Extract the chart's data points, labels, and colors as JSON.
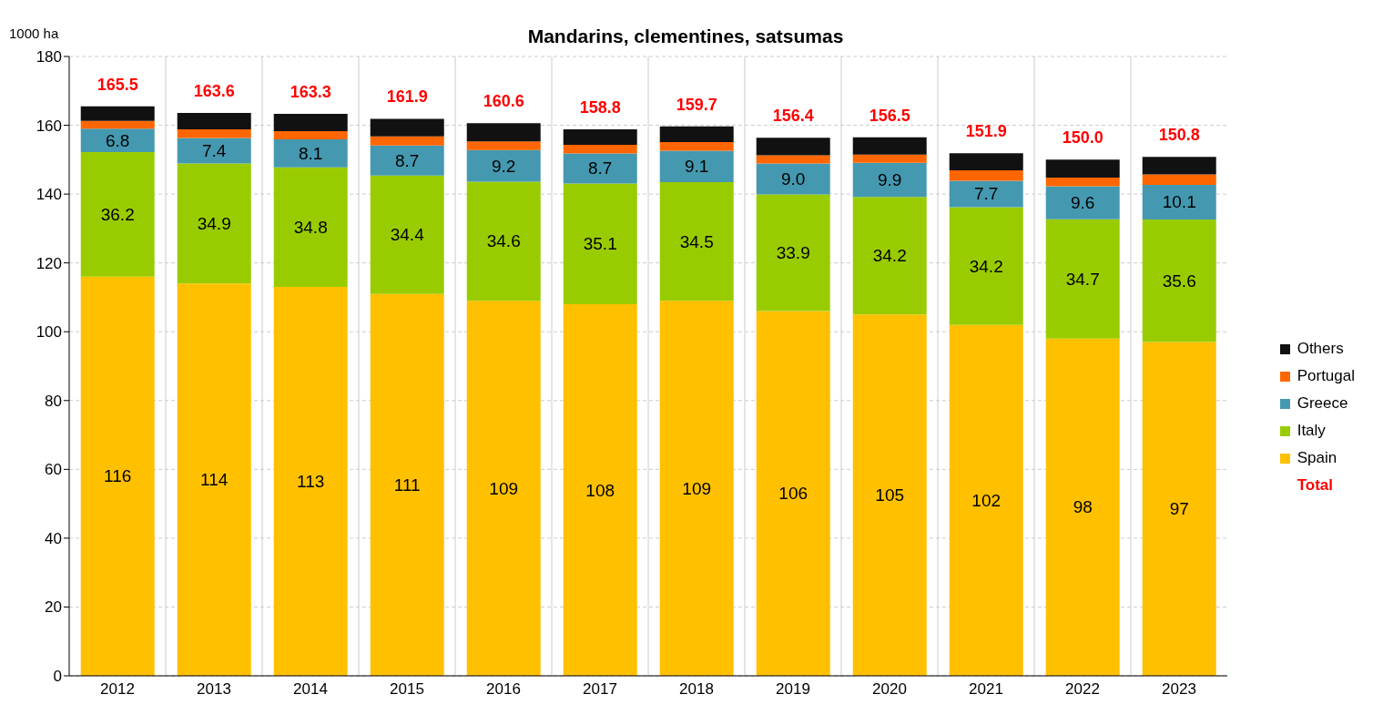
{
  "chart_data": {
    "type": "bar",
    "title": "Mandarins, clementines, satsumas",
    "ylabel": "1000 ha",
    "stacked": true,
    "categories": [
      "2012",
      "2013",
      "2014",
      "2015",
      "2016",
      "2017",
      "2018",
      "2019",
      "2020",
      "2021",
      "2022",
      "2023"
    ],
    "series": [
      {
        "name": "Spain",
        "color": "#ffc000",
        "values": [
          116,
          114,
          113,
          111,
          109,
          108,
          109,
          106,
          105,
          102,
          98,
          97
        ],
        "value_labels": [
          "116",
          "114",
          "113",
          "111",
          "109",
          "108",
          "109",
          "106",
          "105",
          "102",
          "98",
          "97"
        ]
      },
      {
        "name": "Italy",
        "color": "#99cc00",
        "values": [
          36.2,
          34.9,
          34.8,
          34.4,
          34.6,
          35.1,
          34.5,
          33.9,
          34.2,
          34.2,
          34.7,
          35.6
        ],
        "value_labels": [
          "36.2",
          "34.9",
          "34.8",
          "34.4",
          "34.6",
          "35.1",
          "34.5",
          "33.9",
          "34.2",
          "34.2",
          "34.7",
          "35.6"
        ]
      },
      {
        "name": "Greece",
        "color": "#4499b0",
        "values": [
          6.8,
          7.4,
          8.1,
          8.7,
          9.2,
          8.7,
          9.1,
          9.0,
          9.9,
          7.7,
          9.6,
          10.1
        ],
        "value_labels": [
          "6.8",
          "7.4",
          "8.1",
          "8.7",
          "9.2",
          "8.7",
          "9.1",
          "9.0",
          "9.9",
          "7.7",
          "9.6",
          "10.1"
        ]
      },
      {
        "name": "Portugal",
        "color": "#ff6600",
        "values": [
          2.3,
          2.5,
          2.4,
          2.7,
          2.5,
          2.5,
          2.5,
          2.4,
          2.4,
          3.0,
          2.5,
          3.0
        ]
      },
      {
        "name": "Others",
        "color": "#111111",
        "values": [
          4.2,
          4.8,
          5.0,
          5.1,
          5.3,
          4.5,
          4.6,
          5.1,
          5.0,
          5.0,
          5.2,
          5.1
        ]
      }
    ],
    "totals": [
      "165.5",
      "163.6",
      "163.3",
      "161.9",
      "160.6",
      "158.8",
      "159.7",
      "156.4",
      "156.5",
      "151.9",
      "150.0",
      "150.8"
    ],
    "annotations": [
      "Total"
    ],
    "ylim": [
      0,
      180
    ],
    "yticks": [
      0,
      20,
      40,
      60,
      80,
      100,
      120,
      140,
      160,
      180
    ],
    "grid": true,
    "legend": "right"
  }
}
